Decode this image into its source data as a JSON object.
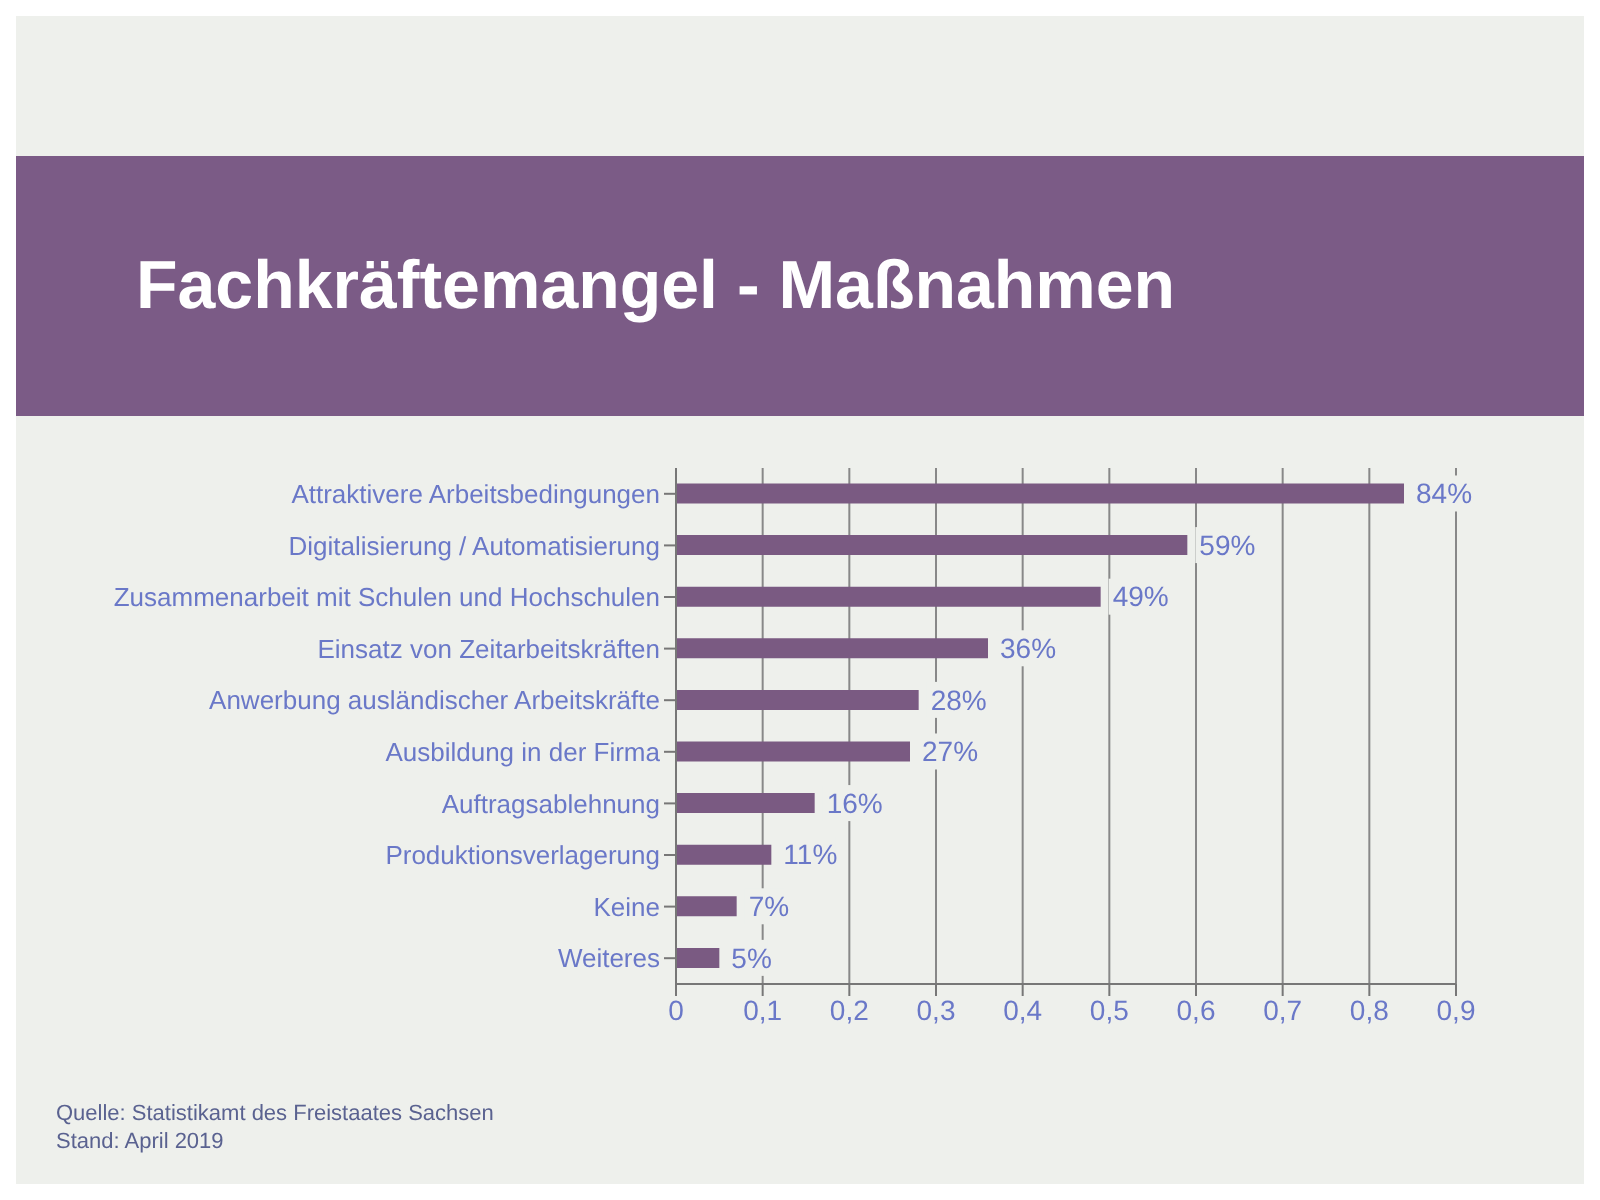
{
  "chart_data": {
    "type": "bar",
    "orientation": "horizontal",
    "title": "Fachkräftemangel - Maßnahmen",
    "categories": [
      "Attraktivere Arbeitsbedingungen",
      "Digitalisierung / Automatisierung",
      "Zusammenarbeit mit Schulen und Hochschulen",
      "Einsatz von Zeitarbeitskräften",
      "Anwerbung ausländischer Arbeitskräfte",
      "Ausbildung in der Firma",
      "Auftragsablehnung",
      "Produktionsverlagerung",
      "Keine",
      "Weiteres"
    ],
    "values": [
      0.84,
      0.59,
      0.49,
      0.36,
      0.28,
      0.27,
      0.16,
      0.11,
      0.07,
      0.05
    ],
    "value_labels": [
      "84%",
      "59%",
      "49%",
      "36%",
      "28%",
      "27%",
      "16%",
      "11%",
      "7%",
      "5%"
    ],
    "color": "#7a5a82",
    "xlim": [
      0,
      0.9
    ],
    "xticks": [
      0,
      {
        "value": 0.1,
        "label": "0,1"
      },
      {
        "value": 0.2,
        "label": "0,2"
      },
      {
        "value": 0.3,
        "label": "0,3"
      },
      {
        "value": 0.4,
        "label": "0,4"
      },
      {
        "value": 0.5,
        "label": "0,5"
      },
      {
        "value": 0.6,
        "label": "0,6"
      },
      {
        "value": 0.7,
        "label": "0,7"
      },
      {
        "value": 0.8,
        "label": "0,8"
      },
      {
        "value": 0.9,
        "label": "0,9"
      }
    ],
    "grid": "x",
    "annotations": [
      "Quelle: Statistikamt des Freistaates Sachsen",
      "Stand: April 2019"
    ]
  }
}
